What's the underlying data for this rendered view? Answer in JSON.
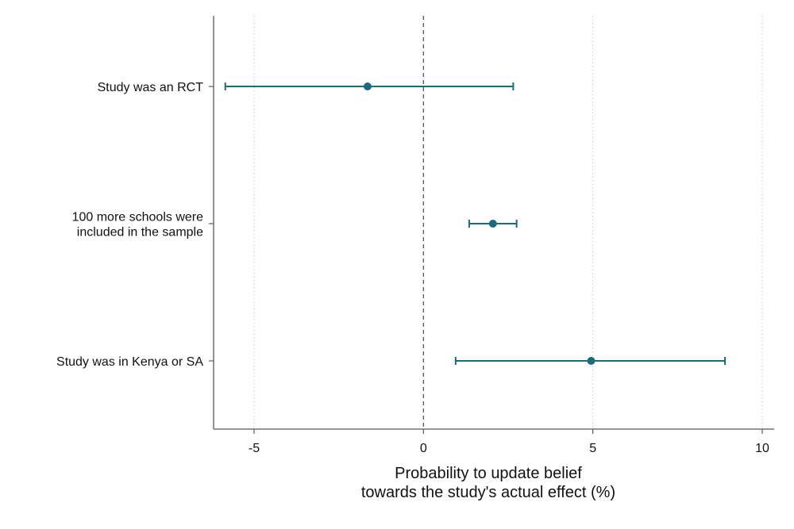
{
  "chart_data": {
    "type": "coefficient-plot",
    "orientation": "horizontal",
    "categories": [
      [
        "Study was an RCT"
      ],
      [
        "100 more schools were",
        "included in the sample"
      ],
      [
        "Study was in Kenya or SA"
      ]
    ],
    "estimates": [
      -1.65,
      2.05,
      4.95
    ],
    "ci_low": [
      -5.85,
      1.35,
      0.95
    ],
    "ci_high": [
      2.65,
      2.75,
      8.9
    ],
    "xlabel": [
      "Probability to update belief",
      "towards the study's actual effect (%)"
    ],
    "xticks": [
      -5,
      0,
      5,
      10
    ],
    "xtick_labels": [
      "-5",
      "0",
      "5",
      "10"
    ],
    "xlim": [
      -6.2,
      10.2
    ],
    "reference_line": 0,
    "grid": "vertical, dotted",
    "colors": {
      "series": "#1a6b80",
      "axis": "#595959",
      "grid": "#c8c8c8"
    }
  }
}
